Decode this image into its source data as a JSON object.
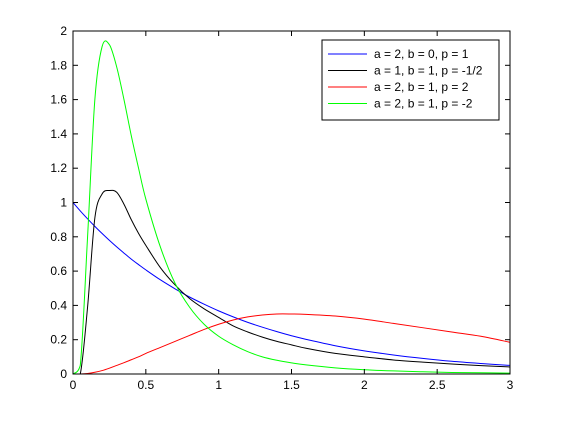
{
  "chart_data": {
    "type": "line",
    "title": "",
    "xlabel": "",
    "ylabel": "",
    "xlim": [
      0,
      3
    ],
    "ylim": [
      0,
      2
    ],
    "grid": false,
    "legend_position": "top-right",
    "x_ticks": [
      0,
      0.5,
      1,
      1.5,
      2,
      2.5,
      3
    ],
    "x_tick_labels": [
      "0",
      "0.5",
      "1",
      "1.5",
      "2",
      "2.5",
      "3"
    ],
    "y_ticks": [
      0,
      0.2,
      0.4,
      0.6,
      0.8,
      1,
      1.2,
      1.4,
      1.6,
      1.8,
      2
    ],
    "y_tick_labels": [
      "0",
      "0.2",
      "0.4",
      "0.6",
      "0.8",
      "1",
      "1.2",
      "1.4",
      "1.6",
      "1.8",
      "2"
    ],
    "x": [
      0,
      0.05,
      0.1,
      0.15,
      0.2,
      0.25,
      0.3,
      0.35,
      0.4,
      0.45,
      0.5,
      0.6,
      0.7,
      0.8,
      0.9,
      1.0,
      1.1,
      1.2,
      1.3,
      1.4,
      1.5,
      1.6,
      1.8,
      2.0,
      2.2,
      2.4,
      2.6,
      2.8,
      3.0
    ],
    "series": [
      {
        "name": "a = 2, b = 0, p = 1",
        "color": "#0000ff",
        "values": [
          1.0,
          0.951,
          0.905,
          0.861,
          0.819,
          0.779,
          0.741,
          0.705,
          0.67,
          0.638,
          0.607,
          0.549,
          0.497,
          0.449,
          0.407,
          0.368,
          0.333,
          0.301,
          0.273,
          0.247,
          0.223,
          0.202,
          0.165,
          0.135,
          0.111,
          0.091,
          0.074,
          0.061,
          0.05
        ]
      },
      {
        "name": "a = 1, b = 1, p = -1/2",
        "color": "#000000",
        "values": [
          0.0,
          0.0,
          0.39,
          0.91,
          1.05,
          1.07,
          1.06,
          0.99,
          0.9,
          0.82,
          0.75,
          0.62,
          0.52,
          0.44,
          0.38,
          0.33,
          0.28,
          0.245,
          0.215,
          0.19,
          0.17,
          0.15,
          0.12,
          0.1,
          0.082,
          0.069,
          0.058,
          0.049,
          0.041
        ]
      },
      {
        "name": "a = 2, b = 1, p = 2",
        "color": "#ff0000",
        "values": [
          0.0,
          0.0,
          0.003,
          0.01,
          0.02,
          0.034,
          0.05,
          0.066,
          0.083,
          0.1,
          0.12,
          0.155,
          0.19,
          0.225,
          0.26,
          0.29,
          0.315,
          0.333,
          0.344,
          0.35,
          0.35,
          0.348,
          0.338,
          0.32,
          0.295,
          0.27,
          0.245,
          0.22,
          0.185
        ]
      },
      {
        "name": "a = 2, b = 1, p = -2",
        "color": "#00ff00",
        "values": [
          0.0,
          0.05,
          0.8,
          1.6,
          1.91,
          1.92,
          1.79,
          1.6,
          1.39,
          1.2,
          1.02,
          0.74,
          0.53,
          0.39,
          0.29,
          0.22,
          0.17,
          0.13,
          0.1,
          0.08,
          0.065,
          0.053,
          0.036,
          0.025,
          0.018,
          0.013,
          0.009,
          0.007,
          0.005
        ]
      }
    ]
  }
}
